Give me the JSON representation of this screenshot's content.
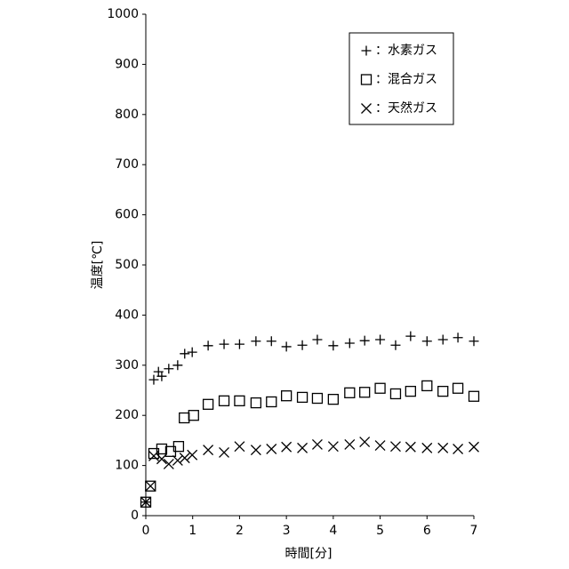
{
  "chart_data": {
    "type": "scatter",
    "x_label": "時間[分]",
    "y_label": "温度[℃]",
    "xlim": [
      0,
      7
    ],
    "xticks": [
      0,
      1,
      2,
      3,
      4,
      5,
      6,
      7
    ],
    "ylim": [
      0,
      1000
    ],
    "yticks": [
      0,
      100,
      200,
      300,
      400,
      500,
      600,
      700,
      800,
      900,
      1000
    ],
    "grid": false,
    "legend": "upper right",
    "series": [
      {
        "name": "：水素ガス",
        "color": "#000000",
        "marker": "plus",
        "x": [
          0,
          0.17,
          0.27,
          0.34,
          0.49,
          0.68,
          0.83,
          0.99,
          1.33,
          1.67,
          2.0,
          2.35,
          2.68,
          3.0,
          3.34,
          3.66,
          4.0,
          4.35,
          4.67,
          5.0,
          5.33,
          5.65,
          6.0,
          6.34,
          6.66,
          7.0
        ],
        "values": [
          27,
          271,
          287,
          278,
          293,
          300,
          323,
          326,
          339,
          342,
          342,
          348,
          348,
          337,
          340,
          351,
          339,
          344,
          349,
          351,
          340,
          358,
          348,
          351,
          355,
          348
        ]
      },
      {
        "name": "：混合ガス",
        "color": "#000000",
        "marker": "square",
        "x": [
          0,
          0.1,
          0.17,
          0.34,
          0.53,
          0.7,
          0.82,
          1.02,
          1.33,
          1.67,
          2.0,
          2.35,
          2.68,
          3.0,
          3.34,
          3.66,
          4.0,
          4.35,
          4.67,
          5.0,
          5.33,
          5.65,
          6.0,
          6.34,
          6.66,
          7.0
        ],
        "values": [
          27,
          59,
          124,
          133,
          128,
          138,
          195,
          200,
          222,
          229,
          229,
          225,
          227,
          239,
          236,
          234,
          232,
          245,
          246,
          254,
          243,
          248,
          259,
          248,
          254,
          238
        ]
      },
      {
        "name": "：天然ガス",
        "color": "#000000",
        "marker": "cross",
        "x": [
          0,
          0.1,
          0.17,
          0.34,
          0.49,
          0.68,
          0.83,
          0.99,
          1.33,
          1.67,
          2.0,
          2.35,
          2.68,
          3.0,
          3.34,
          3.66,
          4.0,
          4.35,
          4.67,
          5.0,
          5.33,
          5.65,
          6.0,
          6.34,
          6.66,
          7.0
        ],
        "values": [
          27,
          59,
          119,
          113,
          103,
          110,
          115,
          121,
          131,
          126,
          138,
          131,
          133,
          137,
          135,
          142,
          138,
          142,
          147,
          140,
          138,
          137,
          135,
          135,
          133,
          137
        ]
      }
    ]
  }
}
